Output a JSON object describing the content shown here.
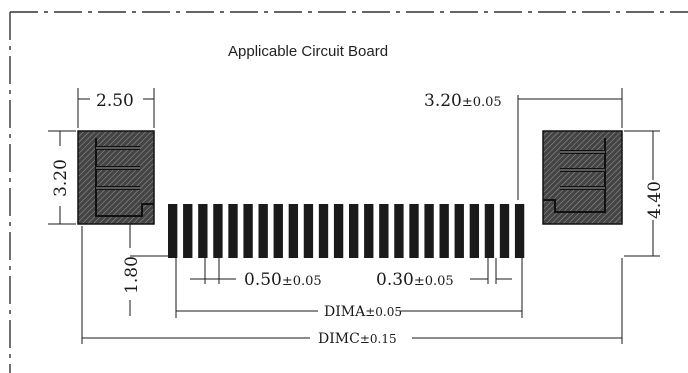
{
  "title": "Applicable Circuit Board",
  "dimensions": {
    "pad_width": "2.50",
    "pad_height_left": "3.20",
    "pad_height_right": "4.40",
    "right_offset": "3.20",
    "right_offset_tol": "±0.05",
    "finger_offset": "1.80",
    "pitch": "0.50",
    "pitch_tol": "±0.05",
    "finger_width": "0.30",
    "finger_width_tol": "±0.05",
    "dim_a": "DIMA",
    "dim_a_tol": "±0.05",
    "dim_c": "DIMC",
    "dim_c_tol": "±0.15"
  },
  "finger_count": 24,
  "colors": {
    "line": "#1a1a1a",
    "pad_fill": "#3a3a3a",
    "paper": "#ffffff"
  }
}
